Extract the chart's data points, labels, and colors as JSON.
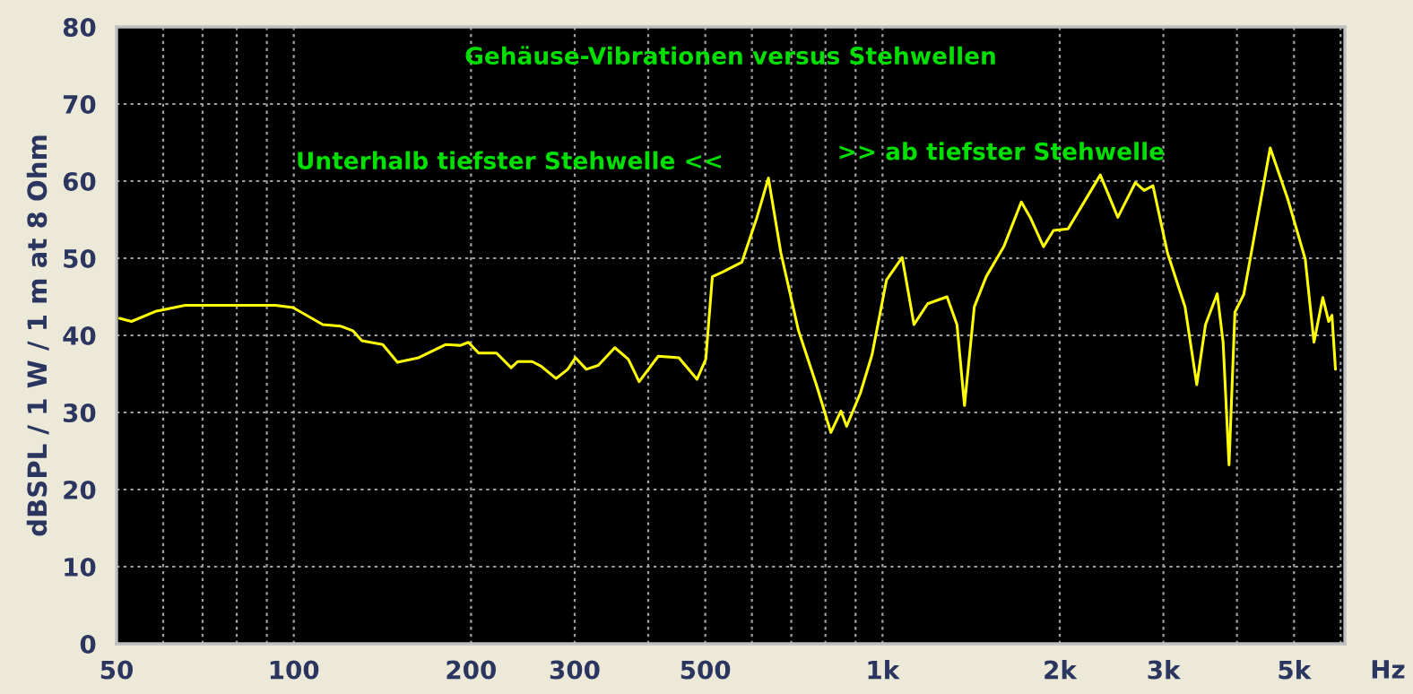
{
  "chart_data": {
    "type": "line",
    "title": "Gehäuse-Vibrationen versus Stehwellen",
    "xlabel": "Hz",
    "ylabel": "dBSPL / 1 W / 1 m at 8 Ohm",
    "annotations": [
      "Unterhalb tiefster Stehwelle <<",
      ">> ab tiefster Stehwelle"
    ],
    "log": "x",
    "xlim": [
      50,
      6100
    ],
    "ylim": [
      0,
      80
    ],
    "xticks": [
      50,
      {
        "value": 60,
        "label": null
      },
      {
        "value": 70,
        "label": null
      },
      {
        "value": 80,
        "label": null
      },
      {
        "value": 90,
        "label": null
      },
      100,
      200,
      300,
      {
        "value": 400,
        "label": null
      },
      500,
      {
        "value": 600,
        "label": null
      },
      {
        "value": 700,
        "label": null
      },
      {
        "value": 800,
        "label": null
      },
      {
        "value": 900,
        "label": null
      },
      {
        "value": 1000,
        "label": "1k"
      },
      {
        "value": 2000,
        "label": "2k"
      },
      {
        "value": 3000,
        "label": "3k"
      },
      {
        "value": 4000,
        "label": null
      },
      {
        "value": 5000,
        "label": "5k"
      },
      {
        "value": 6000,
        "label": null
      }
    ],
    "yticks": [
      0,
      10,
      20,
      30,
      40,
      50,
      60,
      70,
      80
    ],
    "grid": true,
    "legend": false,
    "marker": "none",
    "line_style": "solid",
    "series": [
      {
        "color": "#ffff00",
        "x": [
          50.6,
          53,
          58.2,
          65.4,
          71.9,
          93,
          99.7,
          112,
          120,
          126,
          130.5,
          141.6,
          150,
          163,
          181,
          192,
          198,
          206,
          221,
          234,
          240,
          254,
          263,
          279,
          292,
          301,
          314,
          329,
          351,
          370,
          386,
          416,
          451,
          484,
          501,
          514,
          535,
          577,
          612,
          640,
          672,
          720,
          772,
          817,
          850,
          869,
          917,
          960,
          1016,
          1080,
          1131,
          1193,
          1287,
          1338,
          1378,
          1432,
          1500,
          1607,
          1721,
          1782,
          1877,
          1952,
          2066,
          2344,
          2510,
          2688,
          2782,
          2880,
          3048,
          3265,
          3418,
          3537,
          3703,
          3789,
          3878,
          3968,
          4108,
          4555,
          4878,
          5224,
          5406,
          5596,
          5726,
          5800,
          5880
        ],
        "values": [
          42.2,
          41.8,
          43.1,
          43.9,
          43.9,
          43.9,
          43.6,
          41.4,
          41.2,
          40.6,
          39.3,
          38.8,
          36.5,
          37.1,
          38.8,
          38.7,
          39.1,
          37.7,
          37.7,
          35.8,
          36.6,
          36.6,
          36.0,
          34.4,
          35.6,
          37.1,
          35.6,
          36.1,
          38.4,
          36.9,
          34.0,
          37.3,
          37.1,
          34.3,
          36.9,
          47.6,
          48.2,
          49.5,
          55.3,
          60.4,
          50.7,
          40.6,
          33.6,
          27.4,
          30.2,
          28.2,
          32.5,
          37.5,
          47.2,
          50.1,
          41.4,
          44.1,
          45.0,
          41.4,
          30.9,
          43.7,
          47.6,
          51.5,
          57.3,
          55.3,
          51.5,
          53.6,
          53.8,
          60.8,
          55.3,
          59.8,
          58.8,
          59.4,
          50.7,
          43.7,
          33.6,
          41.4,
          45.4,
          39.1,
          23.2,
          43.0,
          45.3,
          64.3,
          57.7,
          49.9,
          39.1,
          44.9,
          41.8,
          42.6,
          35.6
        ]
      }
    ]
  }
}
